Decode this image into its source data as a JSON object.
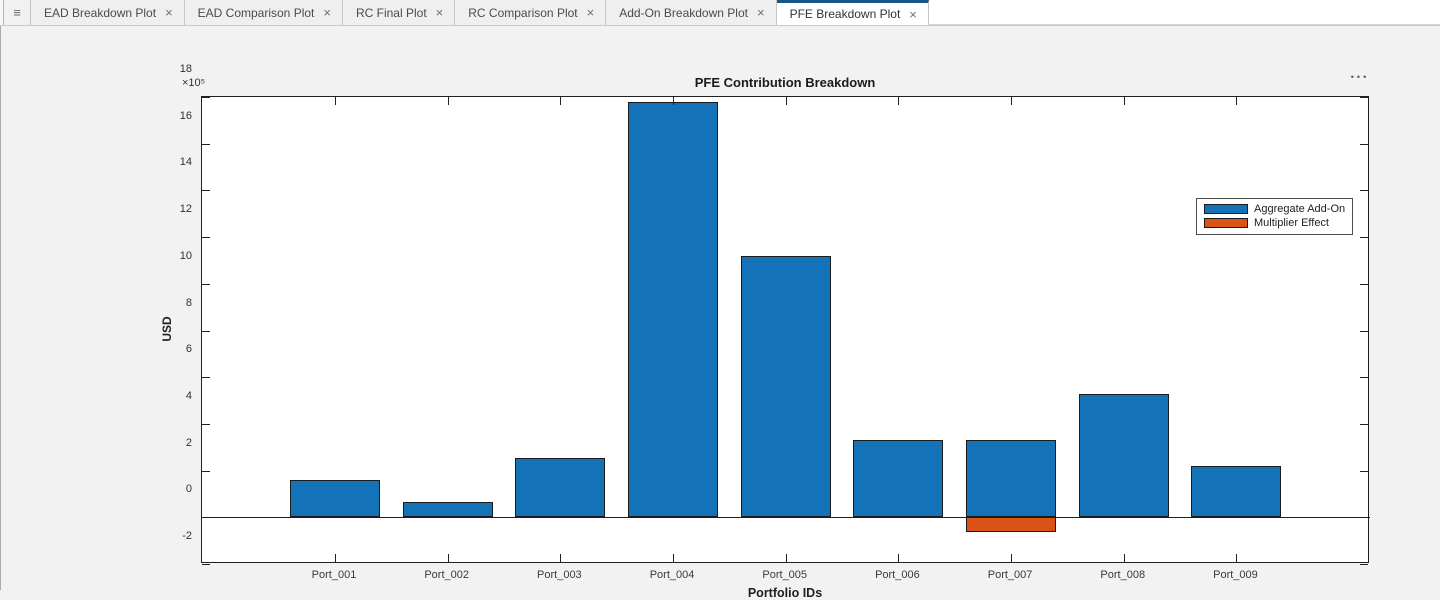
{
  "tab_bar": {
    "menu_icon": "≡",
    "close_glyph": "×",
    "tabs": [
      {
        "label": "EAD Breakdown Plot",
        "active": false
      },
      {
        "label": "EAD Comparison Plot",
        "active": false
      },
      {
        "label": "RC Final Plot",
        "active": false
      },
      {
        "label": "RC Comparison Plot",
        "active": false
      },
      {
        "label": "Add-On Breakdown Plot",
        "active": false
      },
      {
        "label": "PFE Breakdown Plot",
        "active": true
      }
    ]
  },
  "figure": {
    "toolbar_ellipsis": "•••"
  },
  "chart_data": {
    "type": "bar",
    "title": "PFE Contribution Breakdown",
    "xlabel": "Portfolio IDs",
    "ylabel": "USD",
    "y_exponent_label": "×10⁵",
    "y_scale": 100000,
    "categories": [
      "Port_001",
      "Port_002",
      "Port_003",
      "Port_004",
      "Port_005",
      "Port_006",
      "Port_007",
      "Port_008",
      "Port_009"
    ],
    "series": [
      {
        "name": "Aggregate Add-On",
        "color": "#1372B8",
        "values_usd": [
          161000,
          67000,
          256000,
          1780000,
          1120000,
          333000,
          333000,
          530000,
          218000
        ]
      },
      {
        "name": "Multiplier Effect",
        "color": "#D95319",
        "values_usd": [
          0,
          0,
          0,
          0,
          0,
          0,
          -65000,
          0,
          0
        ]
      }
    ],
    "ylim": [
      -2,
      18
    ],
    "yticks": [
      -2,
      0,
      2,
      4,
      6,
      8,
      10,
      12,
      14,
      16,
      18
    ],
    "ytick_labels": [
      "-2",
      "0",
      "2",
      "4",
      "6",
      "8",
      "10",
      "12",
      "14",
      "16",
      "18"
    ],
    "grid": false,
    "legend_position": "upper-right",
    "bar_edge_color": "#1b1b1b"
  }
}
